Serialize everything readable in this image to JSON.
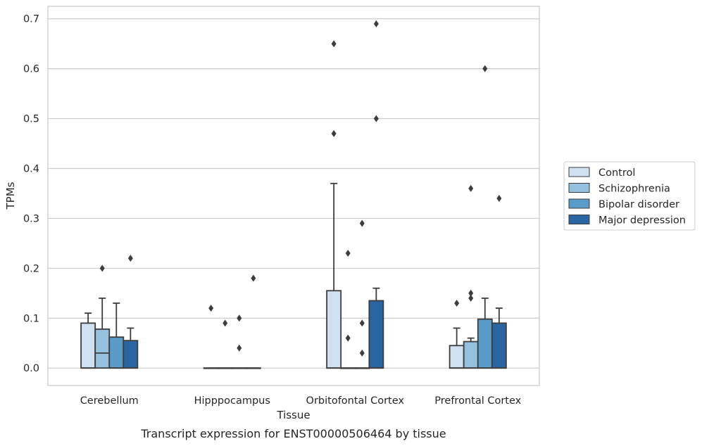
{
  "caption": "Transcript expression for ENST00000506464 by tissue",
  "chart_data": {
    "type": "box",
    "xlabel": "Tissue",
    "ylabel": "TPMs",
    "ylim": [
      -0.035,
      0.725
    ],
    "yticks": [
      "0.0",
      "0.1",
      "0.2",
      "0.3",
      "0.4",
      "0.5",
      "0.6",
      "0.7"
    ],
    "categories": [
      "Cerebellum",
      "Hipppocampus",
      "Orbitofontal Cortex",
      "Prefrontal Cortex"
    ],
    "legend_position": "right",
    "grid": true,
    "series": [
      {
        "name": "Control",
        "color": "#d0e1f1",
        "boxes": [
          {
            "q1": 0.0,
            "median": 0.0,
            "q3": 0.09,
            "whisker_low": 0.0,
            "whisker_high": 0.11,
            "outliers": []
          },
          {
            "q1": 0.0,
            "median": 0.0,
            "q3": 0.0,
            "whisker_low": 0.0,
            "whisker_high": 0.0,
            "outliers": [
              0.12
            ]
          },
          {
            "q1": 0.0,
            "median": 0.0,
            "q3": 0.155,
            "whisker_low": 0.0,
            "whisker_high": 0.37,
            "outliers": [
              0.47,
              0.65
            ]
          },
          {
            "q1": 0.0,
            "median": 0.0,
            "q3": 0.045,
            "whisker_low": 0.0,
            "whisker_high": 0.08,
            "outliers": [
              0.13
            ]
          }
        ]
      },
      {
        "name": "Schizophrenia",
        "color": "#95c0de",
        "boxes": [
          {
            "q1": 0.0,
            "median": 0.03,
            "q3": 0.078,
            "whisker_low": 0.0,
            "whisker_high": 0.14,
            "outliers": [
              0.2
            ]
          },
          {
            "q1": 0.0,
            "median": 0.0,
            "q3": 0.0,
            "whisker_low": 0.0,
            "whisker_high": 0.0,
            "outliers": [
              0.09
            ]
          },
          {
            "q1": 0.0,
            "median": 0.0,
            "q3": 0.0,
            "whisker_low": 0.0,
            "whisker_high": 0.0,
            "outliers": [
              0.06,
              0.23
            ]
          },
          {
            "q1": 0.0,
            "median": 0.0,
            "q3": 0.053,
            "whisker_low": 0.0,
            "whisker_high": 0.06,
            "outliers": [
              0.14,
              0.15,
              0.36
            ]
          }
        ]
      },
      {
        "name": "Bipolar disorder",
        "color": "#5a9cc9",
        "boxes": [
          {
            "q1": 0.0,
            "median": 0.0,
            "q3": 0.062,
            "whisker_low": 0.0,
            "whisker_high": 0.13,
            "outliers": []
          },
          {
            "q1": 0.0,
            "median": 0.0,
            "q3": 0.0,
            "whisker_low": 0.0,
            "whisker_high": 0.0,
            "outliers": [
              0.04,
              0.1
            ]
          },
          {
            "q1": 0.0,
            "median": 0.0,
            "q3": 0.0,
            "whisker_low": 0.0,
            "whisker_high": 0.0,
            "outliers": [
              0.03,
              0.09,
              0.29
            ]
          },
          {
            "q1": 0.0,
            "median": 0.0,
            "q3": 0.098,
            "whisker_low": 0.0,
            "whisker_high": 0.14,
            "outliers": [
              0.6
            ]
          }
        ]
      },
      {
        "name": "Major depression",
        "color": "#2a65a3",
        "boxes": [
          {
            "q1": 0.0,
            "median": 0.0,
            "q3": 0.055,
            "whisker_low": 0.0,
            "whisker_high": 0.08,
            "outliers": [
              0.22
            ]
          },
          {
            "q1": 0.0,
            "median": 0.0,
            "q3": 0.0,
            "whisker_low": 0.0,
            "whisker_high": 0.0,
            "outliers": [
              0.18
            ]
          },
          {
            "q1": 0.0,
            "median": 0.0,
            "q3": 0.135,
            "whisker_low": 0.0,
            "whisker_high": 0.16,
            "outliers": [
              0.5,
              0.69
            ]
          },
          {
            "q1": 0.0,
            "median": 0.0,
            "q3": 0.09,
            "whisker_low": 0.0,
            "whisker_high": 0.12,
            "outliers": [
              0.34
            ]
          }
        ]
      }
    ]
  }
}
